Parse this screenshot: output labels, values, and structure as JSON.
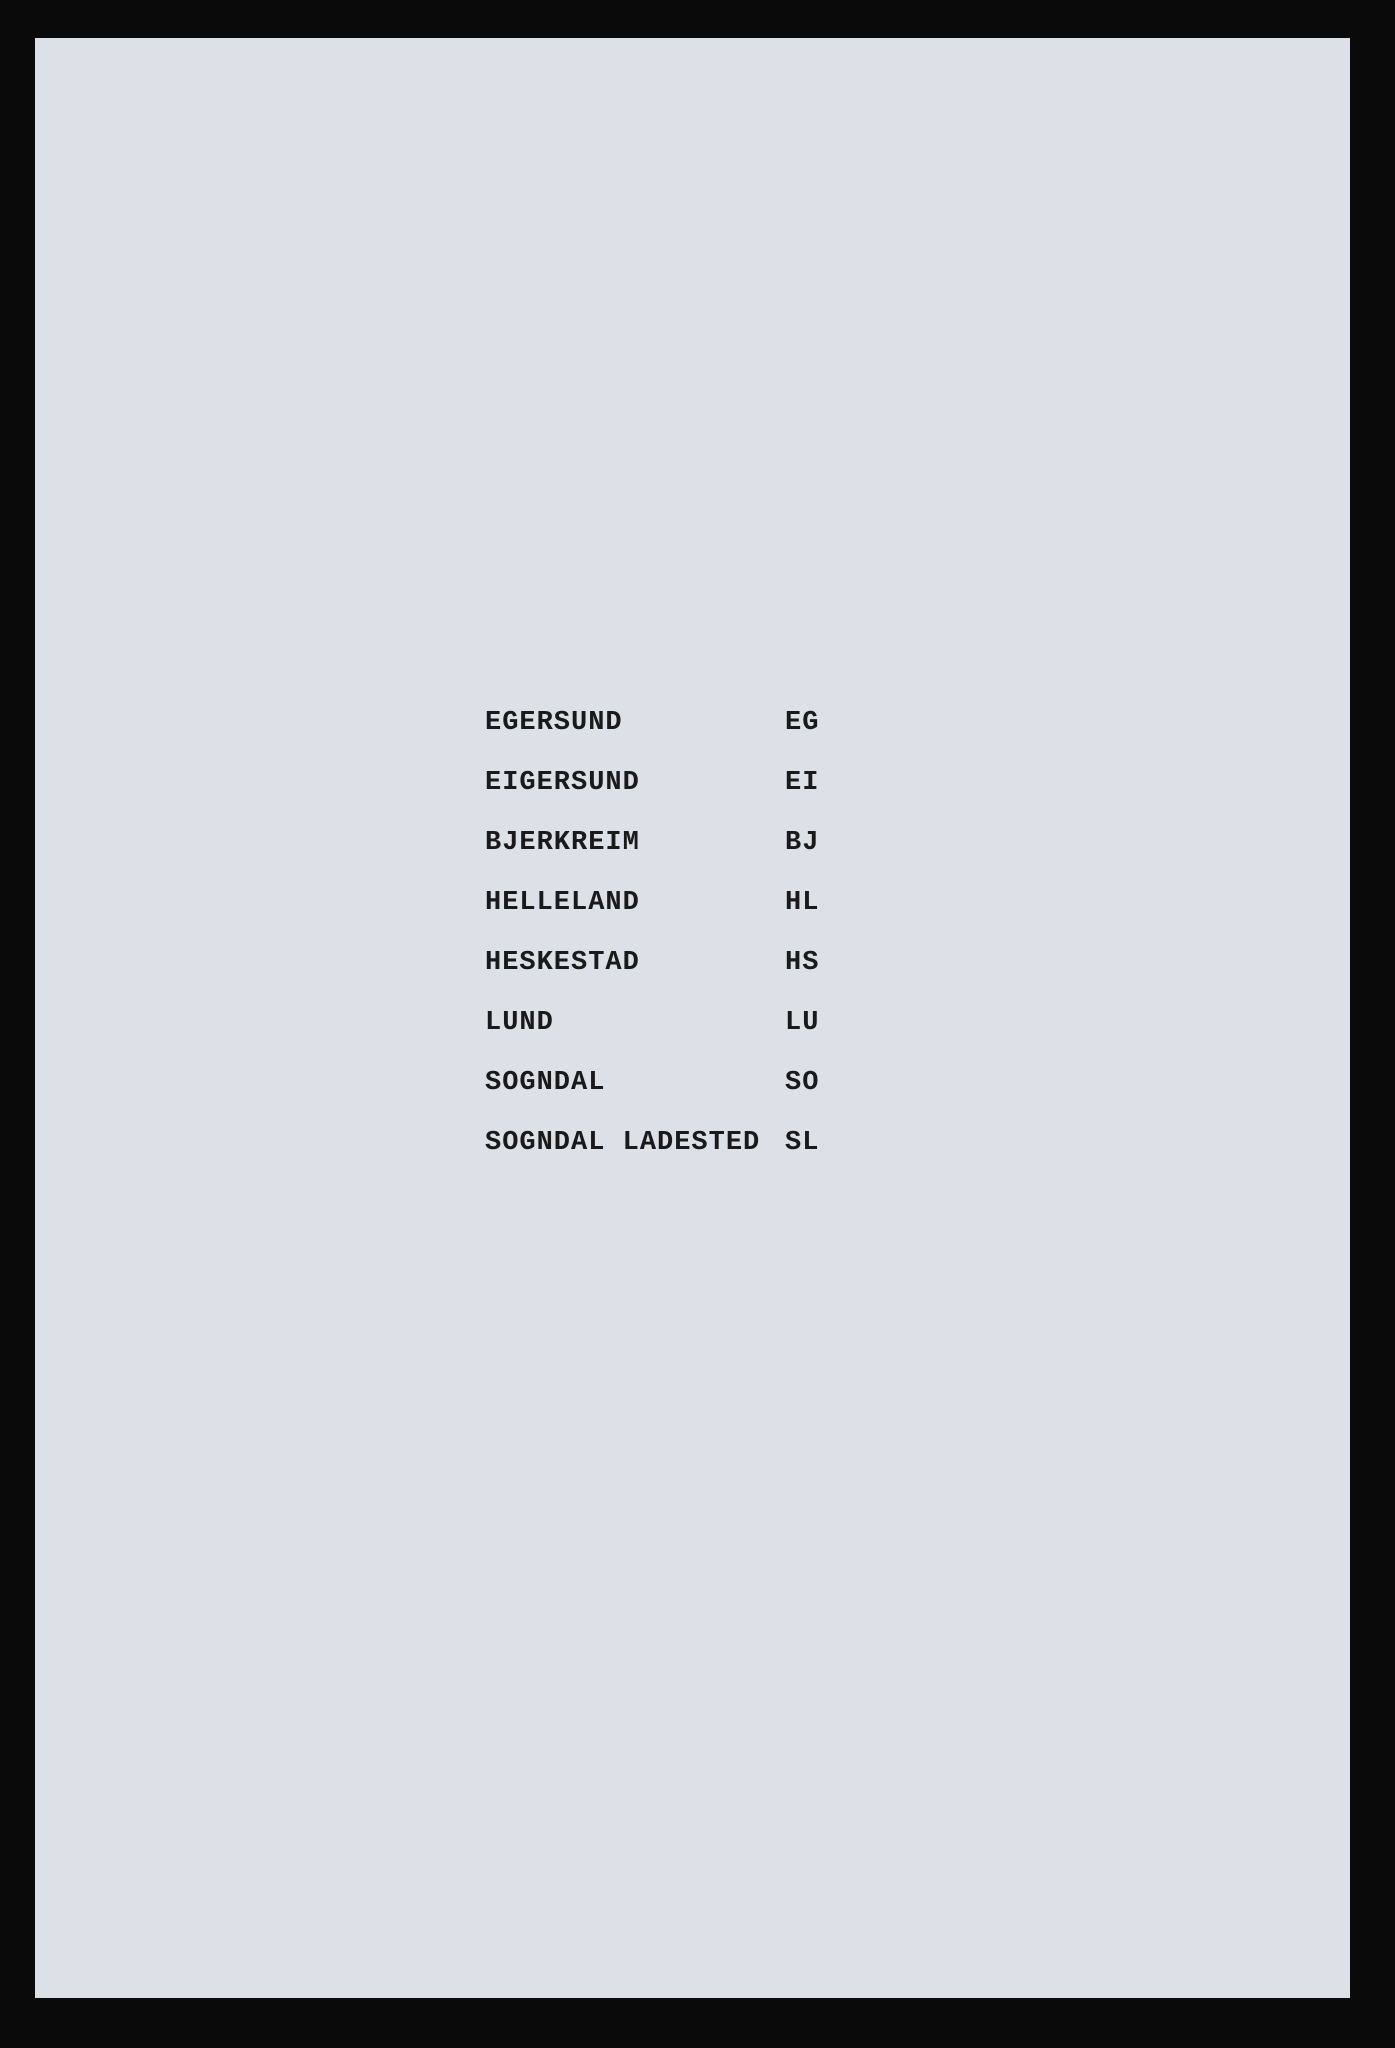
{
  "page": {
    "background_color": "#0a0a0a",
    "paper_color": "#dce0e7",
    "text_color": "#1a1a1a",
    "font_family": "Courier New",
    "font_size": 27
  },
  "table": {
    "rows": [
      {
        "name": "EGERSUND",
        "code": "EG"
      },
      {
        "name": "EIGERSUND",
        "code": "EI"
      },
      {
        "name": "BJERKREIM",
        "code": "BJ"
      },
      {
        "name": "HELLELAND",
        "code": "HL"
      },
      {
        "name": "HESKESTAD",
        "code": "HS"
      },
      {
        "name": "LUND",
        "code": "LU"
      },
      {
        "name": "SOGNDAL",
        "code": "SO"
      },
      {
        "name": "SOGNDAL LADESTED",
        "code": "SL"
      }
    ]
  }
}
